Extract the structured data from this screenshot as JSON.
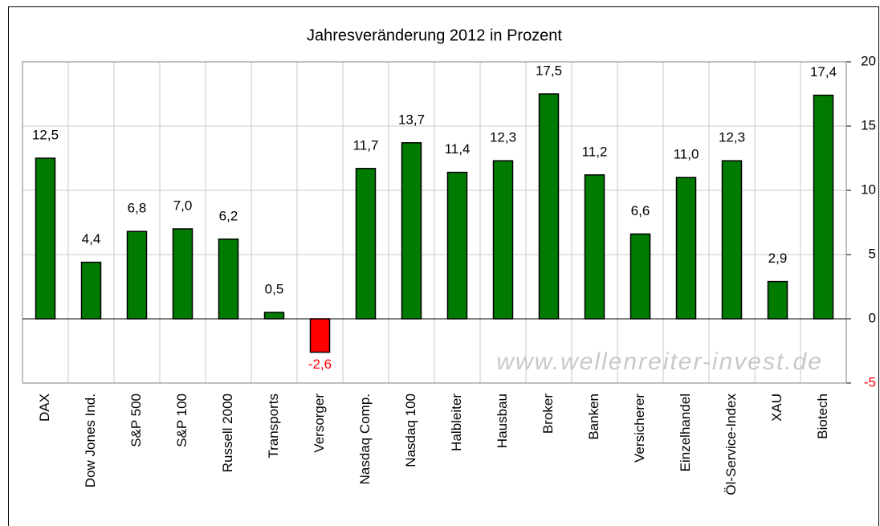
{
  "chart_data": {
    "type": "bar",
    "title": "Jahresveränderung 2012 in Prozent",
    "categories": [
      "DAX",
      "Dow Jones Ind.",
      "S&P 500",
      "S&P 100",
      "Russell 2000",
      "Transports",
      "Versorger",
      "Nasdaq Comp.",
      "Nasdaq 100",
      "Halbleiter",
      "Hausbau",
      "Broker",
      "Banken",
      "Versicherer",
      "Einzelhandel",
      "Öl-Service-Index",
      "XAU",
      "Biotech"
    ],
    "values": [
      12.5,
      4.4,
      6.8,
      7.0,
      6.2,
      0.5,
      -2.6,
      11.7,
      13.7,
      11.4,
      12.3,
      17.5,
      11.2,
      6.6,
      11.0,
      12.3,
      2.9,
      17.4
    ],
    "value_labels": [
      "12,5",
      "4,4",
      "6,8",
      "7,0",
      "6,2",
      "0,5",
      "-2,6",
      "11,7",
      "13,7",
      "11,4",
      "12,3",
      "17,5",
      "11,2",
      "6,6",
      "11,0",
      "12,3",
      "2,9",
      "17,4"
    ],
    "color": "#007a00",
    "negative_color": "#ff0000",
    "ylim": [
      -5,
      20
    ],
    "yticks": [
      20,
      15,
      10,
      5,
      0,
      -5
    ],
    "grid": true,
    "watermark": "www.wellenreiter-invest.de"
  }
}
